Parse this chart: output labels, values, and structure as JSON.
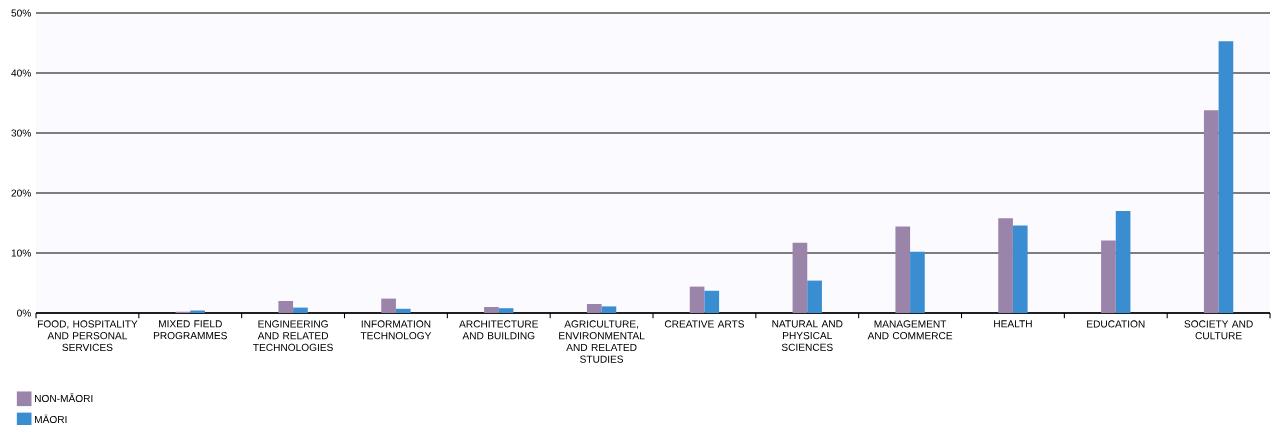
{
  "chart_data": {
    "type": "bar",
    "categories": [
      "FOOD, HOSPITALITY AND PERSONAL SERVICES",
      "MIXED FIELD PROGRAMMES",
      "ENGINEERING AND RELATED TECHNOLOGIES",
      "INFORMATION TECHNOLOGY",
      "ARCHITECTURE AND BUILDING",
      "AGRICULTURE, ENVIRONMENTAL AND RELATED STUDIES",
      "CREATIVE ARTS",
      "NATURAL AND PHYSICAL SCIENCES",
      "MANAGEMENT AND COMMERCE",
      "HEALTH",
      "EDUCATION",
      "SOCIETY AND CULTURE"
    ],
    "series": [
      {
        "name": "NON-MĀORI",
        "color": "#9b84aa",
        "values": [
          0,
          0.2,
          2.0,
          2.4,
          1.0,
          1.5,
          4.4,
          11.7,
          14.4,
          15.8,
          12.1,
          33.8
        ]
      },
      {
        "name": "MĀORI",
        "color": "#3a8dd1",
        "values": [
          0,
          0.4,
          0.9,
          0.7,
          0.8,
          1.1,
          3.7,
          5.4,
          10.2,
          14.6,
          17.0,
          45.3
        ]
      }
    ],
    "ylim": [
      0,
      50
    ],
    "yticks": [
      {
        "value": 0,
        "label": "0%"
      },
      {
        "value": 10,
        "label": "10%"
      },
      {
        "value": 20,
        "label": "20%"
      },
      {
        "value": 30,
        "label": "30%"
      },
      {
        "value": 40,
        "label": "40%"
      },
      {
        "value": 50,
        "label": "50%"
      }
    ],
    "grid": "y",
    "legend": "bottom left"
  }
}
